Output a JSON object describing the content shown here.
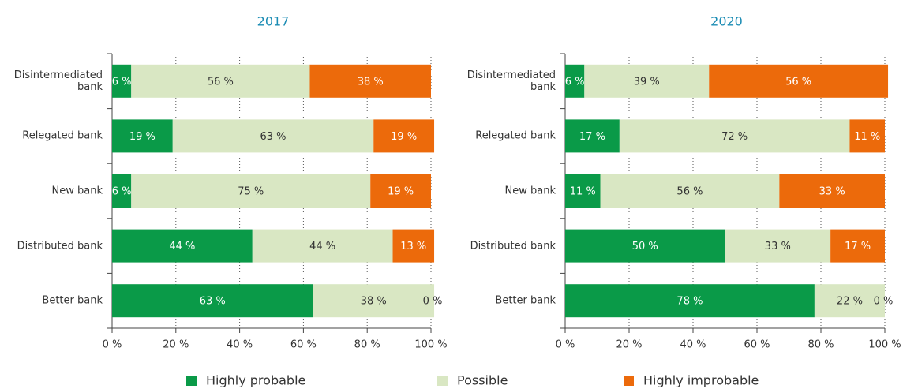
{
  "chart_data": [
    {
      "type": "stacked-bar-horizontal",
      "title": "2017",
      "categories": [
        "Disintermediated bank",
        "Relegated bank",
        "New bank",
        "Distributed bank",
        "Better bank"
      ],
      "series": [
        {
          "values": [
            6,
            19,
            6,
            44,
            63
          ],
          "value_labels": [
            "6 %",
            "19 %",
            "6 %",
            "44 %",
            "63 %"
          ]
        },
        {
          "values": [
            56,
            63,
            75,
            44,
            38
          ],
          "value_labels": [
            "56 %",
            "63 %",
            "75 %",
            "44 %",
            "38 %"
          ]
        },
        {
          "values": [
            38,
            19,
            19,
            13,
            0
          ],
          "value_labels": [
            "38 %",
            "19 %",
            "19 %",
            "13 %",
            "0 %"
          ]
        }
      ],
      "xlim": [
        0,
        100
      ],
      "xticks": [
        {
          "value": 0,
          "label": "0 %"
        },
        {
          "value": 20,
          "label": "20 %"
        },
        {
          "value": 40,
          "label": "40 %"
        },
        {
          "value": 60,
          "label": "60 %"
        },
        {
          "value": 80,
          "label": "80 %"
        },
        {
          "value": 100,
          "label": "100 %"
        }
      ],
      "grid": true
    },
    {
      "type": "stacked-bar-horizontal",
      "title": "2020",
      "categories": [
        "Disintermediated bank",
        "Relegated bank",
        "New bank",
        "Distributed bank",
        "Better bank"
      ],
      "series": [
        {
          "values": [
            6,
            17,
            11,
            50,
            78
          ],
          "value_labels": [
            "6 %",
            "17 %",
            "11 %",
            "50 %",
            "78 %"
          ]
        },
        {
          "values": [
            39,
            72,
            56,
            33,
            22
          ],
          "value_labels": [
            "39 %",
            "72 %",
            "56 %",
            "33 %",
            "22 %"
          ]
        },
        {
          "values": [
            56,
            11,
            33,
            17,
            0
          ],
          "value_labels": [
            "56 %",
            "11 %",
            "33 %",
            "17 %",
            "0 %"
          ]
        }
      ],
      "xlim": [
        0,
        100
      ],
      "xticks": [
        {
          "value": 0,
          "label": "0 %"
        },
        {
          "value": 20,
          "label": "20 %"
        },
        {
          "value": 40,
          "label": "40 %"
        },
        {
          "value": 60,
          "label": "60 %"
        },
        {
          "value": 80,
          "label": "80 %"
        },
        {
          "value": 100,
          "label": "100 %"
        }
      ],
      "grid": true
    }
  ],
  "legend": {
    "items": [
      {
        "name": "Highly probable",
        "color": "#0a9a48",
        "text_color": "#ffffff"
      },
      {
        "name": "Possible",
        "color": "#d9e7c3",
        "text_color": "#333333"
      },
      {
        "name": "Highly improbable",
        "color": "#ec6a0b",
        "text_color": "#ffffff"
      }
    ]
  }
}
